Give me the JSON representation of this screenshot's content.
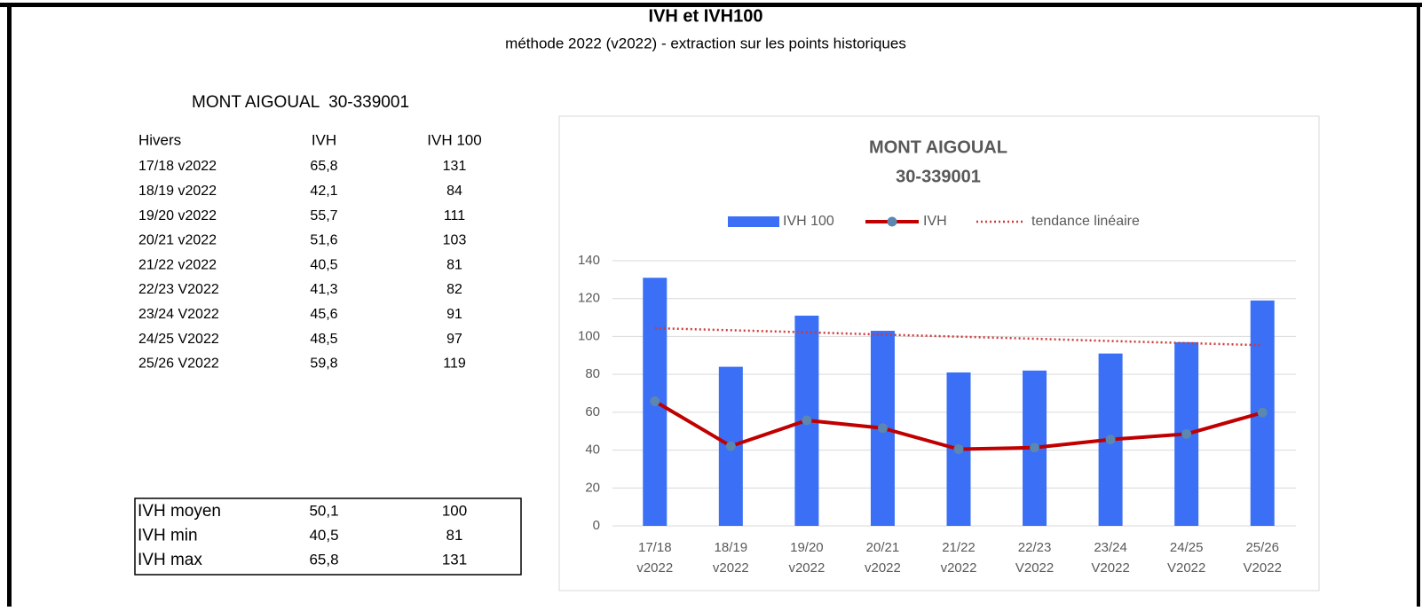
{
  "header": {
    "title": "IVH et IVH100",
    "subtitle": "méthode 2022 (v2022) - extraction sur les points historiques",
    "station": "MONT AIGOUAL  30-339001"
  },
  "table": {
    "columns": [
      "Hivers",
      "IVH",
      "IVH 100"
    ],
    "rows": [
      [
        "17/18 v2022",
        "65,8",
        "131"
      ],
      [
        "18/19 v2022",
        "42,1",
        "84"
      ],
      [
        "19/20 v2022",
        "55,7",
        "111"
      ],
      [
        "20/21 v2022",
        "51,6",
        "103"
      ],
      [
        "21/22 v2022",
        "40,5",
        "81"
      ],
      [
        "22/23 V2022",
        "41,3",
        "82"
      ],
      [
        "23/24 V2022",
        "45,6",
        "91"
      ],
      [
        "24/25 V2022",
        "48,5",
        "97"
      ],
      [
        "25/26 V2022",
        "59,8",
        "119"
      ]
    ]
  },
  "summary": {
    "rows": [
      [
        "IVH moyen",
        "50,1",
        "100"
      ],
      [
        "IVH min",
        "40,5",
        "81"
      ],
      [
        "IVH max",
        "65,8",
        "131"
      ]
    ]
  },
  "chart_data": {
    "type": "bar",
    "title": [
      "MONT AIGOUAL",
      "30-339001"
    ],
    "categories": [
      [
        "17/18",
        "v2022"
      ],
      [
        "18/19",
        "v2022"
      ],
      [
        "19/20",
        "v2022"
      ],
      [
        "20/21",
        "v2022"
      ],
      [
        "21/22",
        "v2022"
      ],
      [
        "22/23",
        "V2022"
      ],
      [
        "23/24",
        "V2022"
      ],
      [
        "24/25",
        "V2022"
      ],
      [
        "25/26",
        "V2022"
      ]
    ],
    "series": [
      {
        "name": "IVH 100",
        "type": "bar",
        "color": "#3a6ff6",
        "values": [
          131,
          84,
          111,
          103,
          81,
          82,
          91,
          97,
          119
        ]
      },
      {
        "name": "IVH",
        "type": "line",
        "color": "#c00000",
        "marker_color": "#5b87b0",
        "values": [
          65.8,
          42.1,
          55.7,
          51.6,
          40.5,
          41.3,
          45.6,
          48.5,
          59.8
        ]
      },
      {
        "name": "tendance linéaire",
        "type": "trend",
        "color": "#d03a3a",
        "values": [
          104.4,
          103.3,
          102.2,
          101.0,
          99.9,
          98.8,
          97.6,
          96.5,
          95.4
        ]
      }
    ],
    "ylim": [
      0,
      140
    ],
    "yticks": [
      0,
      20,
      40,
      60,
      80,
      100,
      120,
      140
    ],
    "grid": true,
    "legend": "top"
  }
}
